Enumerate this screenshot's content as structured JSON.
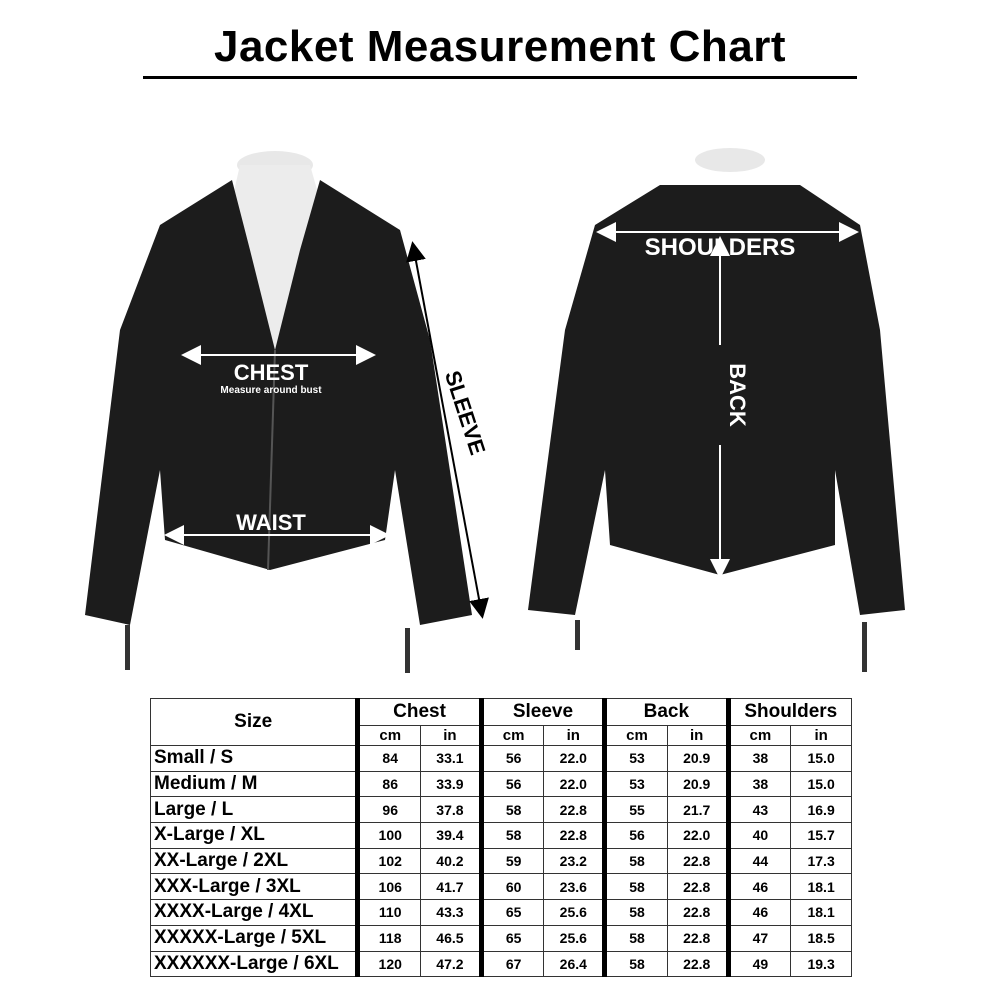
{
  "title": "Jacket Measurement Chart",
  "front_labels": {
    "chest": "CHEST",
    "chest_note": "Measure around bust",
    "waist": "WAIST",
    "sleeve": "SLEEVE"
  },
  "back_labels": {
    "shoulders": "SHOULDERS",
    "back": "BACK"
  },
  "colors": {
    "jacket": "#1a1a1a",
    "mannequin": "#ececec",
    "text": "#000000"
  },
  "table": {
    "size_header": "Size",
    "groups": [
      "Chest",
      "Sleeve",
      "Back",
      "Shoulders"
    ],
    "units": [
      "cm",
      "in"
    ],
    "rows": [
      {
        "size": "Small / S",
        "values": [
          "84",
          "33.1",
          "56",
          "22.0",
          "53",
          "20.9",
          "38",
          "15.0"
        ]
      },
      {
        "size": "Medium / M",
        "values": [
          "86",
          "33.9",
          "56",
          "22.0",
          "53",
          "20.9",
          "38",
          "15.0"
        ]
      },
      {
        "size": "Large / L",
        "values": [
          "96",
          "37.8",
          "58",
          "22.8",
          "55",
          "21.7",
          "43",
          "16.9"
        ]
      },
      {
        "size": "X-Large / XL",
        "values": [
          "100",
          "39.4",
          "58",
          "22.8",
          "56",
          "22.0",
          "40",
          "15.7"
        ]
      },
      {
        "size": "XX-Large / 2XL",
        "values": [
          "102",
          "40.2",
          "59",
          "23.2",
          "58",
          "22.8",
          "44",
          "17.3"
        ]
      },
      {
        "size": "XXX-Large / 3XL",
        "values": [
          "106",
          "41.7",
          "60",
          "23.6",
          "58",
          "22.8",
          "46",
          "18.1"
        ]
      },
      {
        "size": "XXXX-Large / 4XL",
        "values": [
          "110",
          "43.3",
          "65",
          "25.6",
          "58",
          "22.8",
          "46",
          "18.1"
        ]
      },
      {
        "size": "XXXXX-Large / 5XL",
        "values": [
          "118",
          "46.5",
          "65",
          "25.6",
          "58",
          "22.8",
          "47",
          "18.5"
        ]
      },
      {
        "size": "XXXXXX-Large / 6XL",
        "values": [
          "120",
          "47.2",
          "67",
          "26.4",
          "58",
          "22.8",
          "49",
          "19.3"
        ]
      }
    ]
  }
}
